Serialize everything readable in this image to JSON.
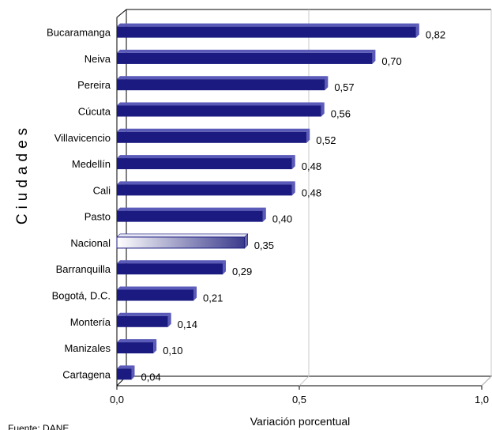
{
  "chart_data": {
    "type": "bar",
    "orientation": "horizontal",
    "categories": [
      "Bucaramanga",
      "Neiva",
      "Pereira",
      "Cúcuta",
      "Villavicencio",
      "Medellín",
      "Cali",
      "Pasto",
      "Nacional",
      "Barranquilla",
      "Bogotá, D.C.",
      "Montería",
      "Manizales",
      "Cartagena"
    ],
    "values": [
      0.82,
      0.7,
      0.57,
      0.56,
      0.52,
      0.48,
      0.48,
      0.4,
      0.35,
      0.29,
      0.21,
      0.14,
      0.1,
      0.04
    ],
    "value_labels": [
      "0,82",
      "0,70",
      "0,57",
      "0,56",
      "0,52",
      "0,48",
      "0,48",
      "0,40",
      "0,35",
      "0,29",
      "0,21",
      "0,14",
      "0,10",
      "0,04"
    ],
    "highlight_category": "Nacional",
    "xlabel": "Variación porcentual",
    "ylabel": "Ciudades",
    "xlim": [
      0,
      1.0
    ],
    "x_ticks": [
      0,
      0.5,
      1.0
    ],
    "x_tick_labels": [
      "0,0",
      "0,5",
      "1,0"
    ],
    "grid": "vertical",
    "colors": {
      "bar": "#1a1a80",
      "bar_side": "#5a5ab8",
      "highlight_start": "#ffffff",
      "highlight_end": "#3a3a8c",
      "grid": "#c8c8c8"
    },
    "source": "Fuente: DANE"
  }
}
